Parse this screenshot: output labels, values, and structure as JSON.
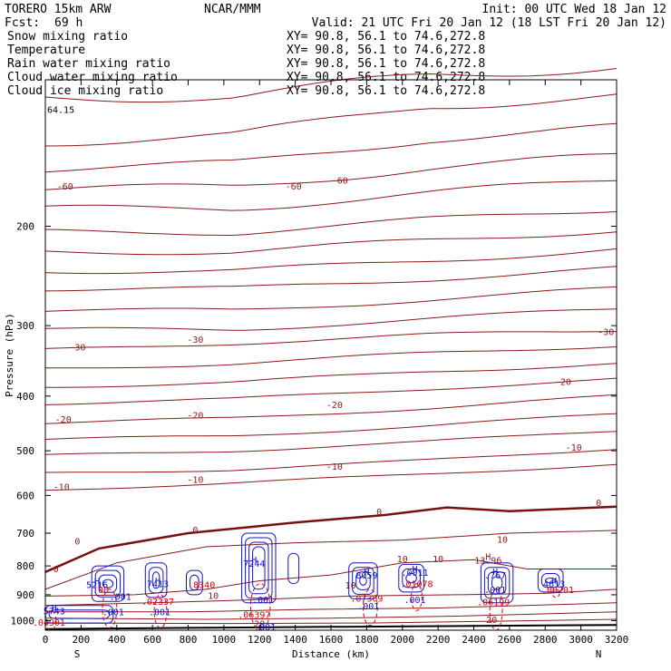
{
  "header": {
    "model": "TORERO  15km ARW",
    "center": "NCAR/MMM",
    "init": "Init: 00 UTC Wed 18 Jan 12",
    "fcst_label": "Fcst:",
    "fcst_value": "69 h",
    "valid": "Valid: 21 UTC Fri 20 Jan 12 (18 LST Fri 20 Jan 12)"
  },
  "fields": [
    {
      "name": "Snow mixing ratio",
      "color": "#000000"
    },
    {
      "name": "Temperature",
      "color": "#b22222"
    },
    {
      "name": "Rain water mixing ratio",
      "color": "#dd0000"
    },
    {
      "name": "Cloud water mixing ratio",
      "color": "#0000dd"
    },
    {
      "name": "Cloud ice mixing ratio",
      "color": "#000000"
    }
  ],
  "cross_section": {
    "text": "XY= 90.8, 56.1 to 74.6,272.8",
    "colors": [
      "#000000",
      "#b22222",
      "#dd0000",
      "#0000dd",
      "#000000"
    ]
  },
  "chart_data": {
    "type": "contour cross-section",
    "xlabel": "Distance (km)",
    "ylabel": "Pressure (hPa)",
    "x_ticks": [
      0,
      200,
      400,
      600,
      800,
      1000,
      1200,
      1400,
      1600,
      1800,
      2000,
      2200,
      2400,
      2600,
      2800,
      3000,
      3200
    ],
    "y_ticks": [
      200,
      300,
      400,
      500,
      600,
      700,
      800,
      900,
      1000
    ],
    "xlim": [
      0,
      3200
    ],
    "ylim": [
      1040,
      110
    ],
    "y_scale": "log-pressure",
    "x_end_labels": {
      "left": "S",
      "right": "N"
    },
    "top_left_value": "64.15",
    "temperature_isotherms": [
      {
        "value": "-60",
        "labels": [
          {
            "x": 110,
            "p": 172,
            "text": "-60"
          },
          {
            "x": 1390,
            "p": 172,
            "text": "-60"
          },
          {
            "x": 1650,
            "p": 168,
            "text": "-60"
          }
        ]
      },
      {
        "value": "-30",
        "labels": [
          {
            "x": 180,
            "p": 332,
            "text": "-30"
          },
          {
            "x": 840,
            "p": 322,
            "text": "-30"
          },
          {
            "x": 3140,
            "p": 312,
            "text": "-30"
          }
        ]
      },
      {
        "value": "-20",
        "labels": [
          {
            "x": 100,
            "p": 446,
            "text": "-20"
          },
          {
            "x": 840,
            "p": 438,
            "text": "-20"
          },
          {
            "x": 1620,
            "p": 420,
            "text": "-20"
          },
          {
            "x": 2900,
            "p": 382,
            "text": "-20"
          }
        ]
      },
      {
        "value": "-10",
        "labels": [
          {
            "x": 90,
            "p": 587,
            "text": "-10"
          },
          {
            "x": 840,
            "p": 570,
            "text": "-10"
          },
          {
            "x": 1620,
            "p": 540,
            "text": "-10"
          },
          {
            "x": 2960,
            "p": 500,
            "text": "-10"
          }
        ]
      },
      {
        "value": "0",
        "labels": [
          {
            "x": 180,
            "p": 733,
            "text": "0"
          },
          {
            "x": 840,
            "p": 700,
            "text": "0"
          },
          {
            "x": 1870,
            "p": 650,
            "text": "0"
          },
          {
            "x": 3100,
            "p": 626,
            "text": "0"
          }
        ]
      },
      {
        "value": "10",
        "labels": [
          {
            "x": 60,
            "p": 820,
            "text": "0"
          },
          {
            "x": 2560,
            "p": 728,
            "text": "10"
          },
          {
            "x": 2000,
            "p": 788,
            "text": "10"
          },
          {
            "x": 2200,
            "p": 788,
            "text": "10"
          },
          {
            "x": 2480,
            "p": 793,
            "text": "13.96"
          },
          {
            "x": 2480,
            "p": 780,
            "text": "H"
          },
          {
            "x": 940,
            "p": 916,
            "text": "10"
          },
          {
            "x": 1710,
            "p": 877,
            "text": "10"
          },
          {
            "x": 1200,
            "p": 1027,
            "text": "20"
          },
          {
            "x": 2500,
            "p": 1010,
            "text": "20"
          }
        ]
      }
    ],
    "cloud_water_maxima": [
      {
        "x": 290,
        "p": 875,
        "text": "5216"
      },
      {
        "x": 630,
        "p": 873,
        "text": "7413"
      },
      {
        "x": 1170,
        "p": 803,
        "text": "7244"
      },
      {
        "x": 1800,
        "p": 842,
        "text": "8059"
      },
      {
        "x": 2070,
        "p": 833,
        "text": ".0011"
      },
      {
        "x": 2520,
        "p": 842,
        "text": ".767"
      },
      {
        "x": 2850,
        "p": 873,
        "text": "4613"
      },
      {
        "x": 50,
        "p": 975,
        "text": "5743"
      }
    ],
    "rain_water_labels": [
      {
        "x": 310,
        "p": 893,
        "text": ".00"
      },
      {
        "x": 890,
        "p": 875,
        "text": "8340"
      },
      {
        "x": 630,
        "p": 938,
        "text": ".02337"
      },
      {
        "x": 1170,
        "p": 990,
        "text": ".06397"
      },
      {
        "x": 1800,
        "p": 925,
        "text": ".07369"
      },
      {
        "x": 2080,
        "p": 873,
        "text": ".01078"
      },
      {
        "x": 2510,
        "p": 940,
        "text": ".06199"
      },
      {
        "x": 2870,
        "p": 893,
        "text": ".00201"
      },
      {
        "x": 20,
        "p": 1020,
        "text": ".04901"
      }
    ],
    "small_labels": [
      {
        "x": 420,
        "p": 918,
        "text": ".001"
      },
      {
        "x": 380,
        "p": 978,
        "text": ".001"
      },
      {
        "x": 640,
        "p": 978,
        "text": ".001"
      },
      {
        "x": 1220,
        "p": 931,
        "text": ".001"
      },
      {
        "x": 1230,
        "p": 1040,
        "text": ".001"
      },
      {
        "x": 1810,
        "p": 955,
        "text": ".001"
      },
      {
        "x": 2070,
        "p": 930,
        "text": ".001"
      },
      {
        "x": 2520,
        "p": 893,
        "text": ".001"
      }
    ]
  }
}
